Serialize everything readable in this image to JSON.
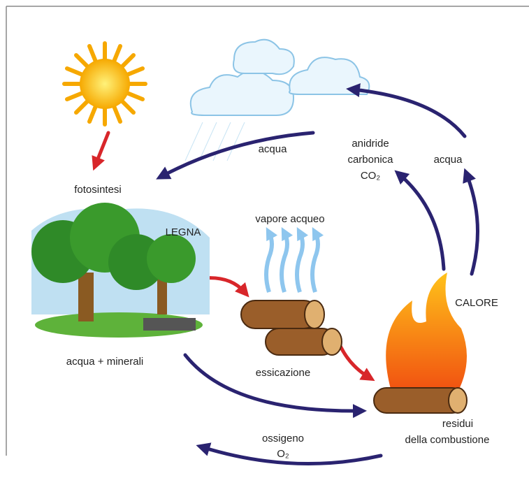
{
  "labels": {
    "fotosintesi": "fotosintesi",
    "water_left": "acqua",
    "co2": [
      "anidride",
      "carbonica",
      "CO₂"
    ],
    "water_right": "acqua",
    "vapor": "vapore acqueo",
    "wood": "LEGNA",
    "heat": "CALORE",
    "water_minerals": "acqua + minerali",
    "drying": "essicazione",
    "oxygen": [
      "ossigeno",
      "O₂"
    ],
    "residue": [
      "residui",
      "della combustione"
    ]
  }
}
